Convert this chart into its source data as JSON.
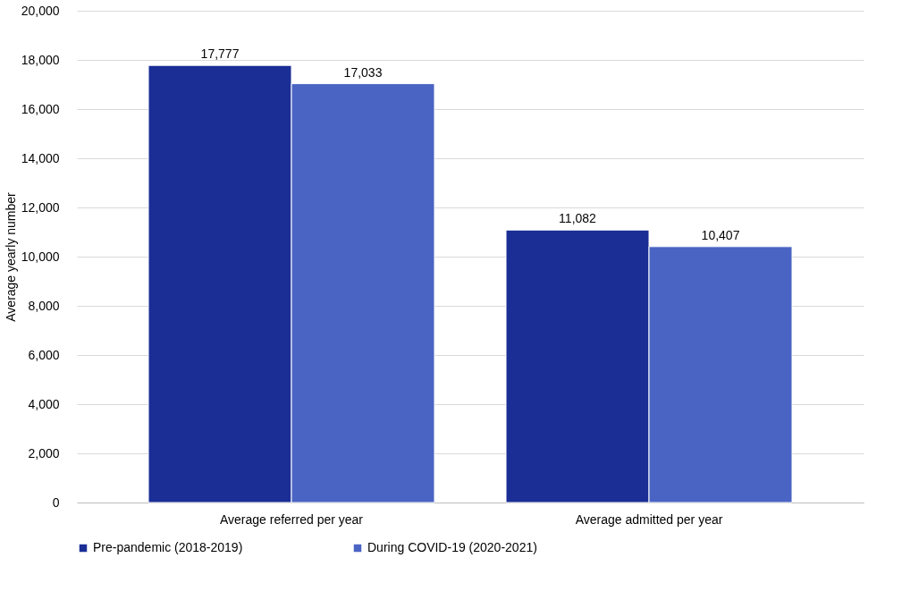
{
  "chart_data": {
    "type": "bar",
    "ylabel": "Average yearly number",
    "categories": [
      "Average referred per year",
      "Average admitted per year"
    ],
    "series": [
      {
        "name": "Pre-pandemic (2018-2019)",
        "color": "#1a2e96",
        "values": [
          17777,
          11082
        ],
        "value_labels": [
          "17,777",
          "11,082"
        ]
      },
      {
        "name": "During COVID-19 (2020-2021)",
        "color": "#4a64c4",
        "values": [
          17033,
          10407
        ],
        "value_labels": [
          "17,033",
          "10,407"
        ]
      }
    ],
    "ylim": [
      0,
      20000
    ],
    "yticks": [
      0,
      {
        "value": 2000,
        "label": "2,000"
      },
      {
        "value": 4000,
        "label": "4,000"
      },
      {
        "value": 6000,
        "label": "6,000"
      },
      {
        "value": 8000,
        "label": "8,000"
      },
      {
        "value": 10000,
        "label": "10,000"
      },
      {
        "value": 12000,
        "label": "12,000"
      },
      {
        "value": 14000,
        "label": "14,000"
      },
      {
        "value": 16000,
        "label": "16,000"
      },
      {
        "value": 18000,
        "label": "18,000"
      },
      {
        "value": 20000,
        "label": "20,000"
      }
    ],
    "grid": "y",
    "legend": "bottom"
  }
}
